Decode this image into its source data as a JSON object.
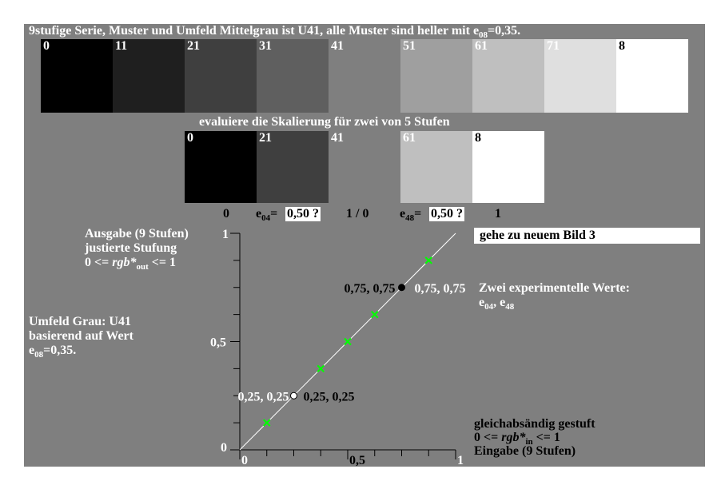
{
  "title_prefix": "9stufige Serie, Muster und Umfeld Mittelgrau ist U41, alle Muster sind heller mit e",
  "title_sub": "08",
  "title_suffix": "=0,35.",
  "top_swatches": [
    {
      "label": "0",
      "color": "#000000",
      "text_color": "#ffffff"
    },
    {
      "label": "11",
      "color": "#1f1f1f",
      "text_color": "#ffffff"
    },
    {
      "label": "21",
      "color": "#3f3f3f",
      "text_color": "#ffffff"
    },
    {
      "label": "31",
      "color": "#5f5f5f",
      "text_color": "#ffffff"
    },
    {
      "label": "41",
      "color": "#7f7f7f",
      "text_color": "#ffffff"
    },
    {
      "label": "51",
      "color": "#9f9f9f",
      "text_color": "#ffffff"
    },
    {
      "label": "61",
      "color": "#bfbfbf",
      "text_color": "#ffffff"
    },
    {
      "label": "71",
      "color": "#dfdfdf",
      "text_color": "#ffffff"
    },
    {
      "label": "8",
      "color": "#ffffff",
      "text_color": "#000000"
    }
  ],
  "subtitle": "evaluiere die Skalierung für zwei von 5 Stufen",
  "mid_swatches": [
    {
      "label": "0",
      "color": "#000000",
      "text_color": "#ffffff"
    },
    {
      "label": "21",
      "color": "#3f3f3f",
      "text_color": "#ffffff"
    },
    {
      "label": "41",
      "color": "#7f7f7f",
      "text_color": "#ffffff"
    },
    {
      "label": "61",
      "color": "#bfbfbf",
      "text_color": "#ffffff"
    },
    {
      "label": "8",
      "color": "#ffffff",
      "text_color": "#000000"
    }
  ],
  "eval_row": {
    "zero": "0",
    "e04_label_pre": "e",
    "e04_label_sub": "04",
    "e04_label_eq": "=",
    "e04_value": "0,50 ?",
    "ratio": "1 / 0",
    "e48_label_pre": "e",
    "e48_label_sub": "48",
    "e48_label_eq": "=",
    "e48_value": "0,50 ?",
    "one": "1"
  },
  "output_label": {
    "line1": "Ausgabe (9 Stufen)",
    "line2": "justierte Stufung",
    "line3_pre": "0 <= ",
    "line3_var": "rgb*",
    "line3_sub": "out",
    "line3_post": " <= 1"
  },
  "surround_label": {
    "line1": "Umfeld Grau: U41",
    "line2": "basierend auf Wert",
    "line3_pre": "e",
    "line3_sub": "08",
    "line3_post": "=0,35."
  },
  "goto_button": "gehe zu neuem Bild 3",
  "experimental": {
    "heading": "Zwei experimentelle Werte:",
    "e04_pre": "e",
    "e04_sub": "04",
    "sep": ", ",
    "e48_pre": "e",
    "e48_sub": "48"
  },
  "input_label": {
    "line1": "gleichabsändig gestuft",
    "line2_pre": "0 <= ",
    "line2_var": "rgb*",
    "line2_sub": "in",
    "line2_post": " <= 1",
    "line3": "Eingabe (9 Stufen)"
  },
  "chart_data": {
    "type": "scatter",
    "x_ticks": [
      "0",
      "0,5",
      "1"
    ],
    "y_ticks": [
      "0",
      "0,5",
      "1"
    ],
    "xlim": [
      0,
      1
    ],
    "ylim": [
      0,
      1
    ],
    "diagonal": [
      [
        0,
        0
      ],
      [
        1,
        1
      ]
    ],
    "green_points": [
      [
        0.125,
        0.125
      ],
      [
        0.375,
        0.375
      ],
      [
        0.5,
        0.5
      ],
      [
        0.625,
        0.625
      ],
      [
        0.875,
        0.875
      ]
    ],
    "point_white": {
      "x": 0.25,
      "y": 0.25,
      "label_left": "0,25, 0,25",
      "label_right": "0,25, 0,25"
    },
    "point_black": {
      "x": 0.75,
      "y": 0.75,
      "label_left": "0,75, 0,75",
      "label_right": "0,75, 0,75"
    },
    "colors": {
      "green": "#00ff00",
      "line": "#ffffff",
      "axis": "#000000"
    }
  }
}
